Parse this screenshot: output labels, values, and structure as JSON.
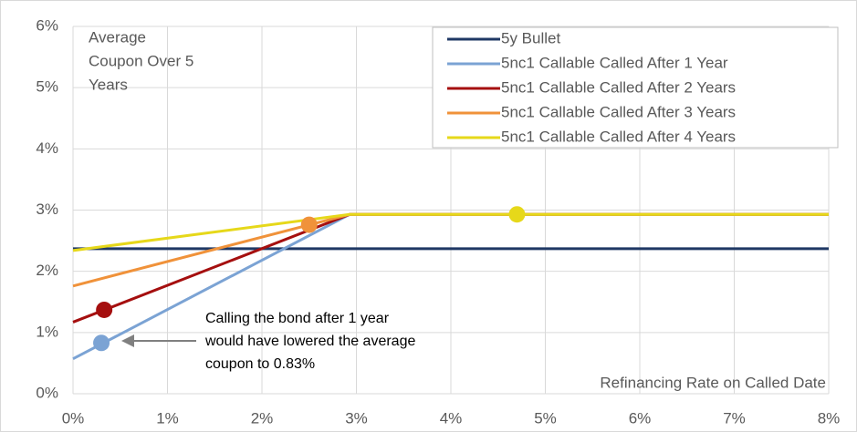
{
  "chart_data": {
    "type": "line",
    "annotation_top_left": [
      "Average",
      "Coupon Over 5",
      "Years"
    ],
    "annotation_callout": [
      "Calling the bond after 1 year",
      "would have lowered the average",
      "coupon to 0.83%"
    ],
    "xlabel": "Refinancing Rate on Called Date",
    "xlim": [
      0,
      8
    ],
    "xticks": [
      {
        "value": 0,
        "label": "0%"
      },
      {
        "value": 1,
        "label": "1%"
      },
      {
        "value": 2,
        "label": "2%"
      },
      {
        "value": 3,
        "label": "3%"
      },
      {
        "value": 4,
        "label": "4%"
      },
      {
        "value": 5,
        "label": "5%"
      },
      {
        "value": 6,
        "label": "6%"
      },
      {
        "value": 7,
        "label": "7%"
      },
      {
        "value": 8,
        "label": "8%"
      }
    ],
    "ylim": [
      0,
      6
    ],
    "yticks": [
      {
        "value": 0,
        "label": "0%"
      },
      {
        "value": 1,
        "label": "1%"
      },
      {
        "value": 2,
        "label": "2%"
      },
      {
        "value": 3,
        "label": "3%"
      },
      {
        "value": 4,
        "label": "4%"
      },
      {
        "value": 5,
        "label": "5%"
      },
      {
        "value": 6,
        "label": "6%"
      }
    ],
    "grid": true,
    "legend": "top-right",
    "series": [
      {
        "name": "5y Bullet",
        "color": "#1f3864",
        "x": [
          0,
          8
        ],
        "values": [
          2.37,
          2.37
        ]
      },
      {
        "name": "5nc1 Callable Called After 1 Year",
        "color": "#7ba3d4",
        "x": [
          0,
          2.93,
          8
        ],
        "values": [
          0.57,
          2.93,
          2.93
        ]
      },
      {
        "name": "5nc1 Callable Called After 2 Years",
        "color": "#a50f0f",
        "x": [
          0,
          2.93,
          8
        ],
        "values": [
          1.17,
          2.93,
          2.93
        ]
      },
      {
        "name": "5nc1 Callable Called After 3 Years",
        "color": "#f0923a",
        "x": [
          0,
          2.93,
          8
        ],
        "values": [
          1.76,
          2.93,
          2.93
        ]
      },
      {
        "name": "5nc1 Callable Called After 4 Years",
        "color": "#e6d81a",
        "x": [
          0,
          2.93,
          8
        ],
        "values": [
          2.34,
          2.93,
          2.93
        ]
      }
    ],
    "points": [
      {
        "x": 0.3,
        "y": 0.83,
        "color": "#7ba3d4"
      },
      {
        "x": 0.33,
        "y": 1.37,
        "color": "#a50f0f"
      },
      {
        "x": 2.5,
        "y": 2.76,
        "color": "#f0923a"
      },
      {
        "x": 4.7,
        "y": 2.93,
        "color": "#e6d81a"
      }
    ]
  }
}
